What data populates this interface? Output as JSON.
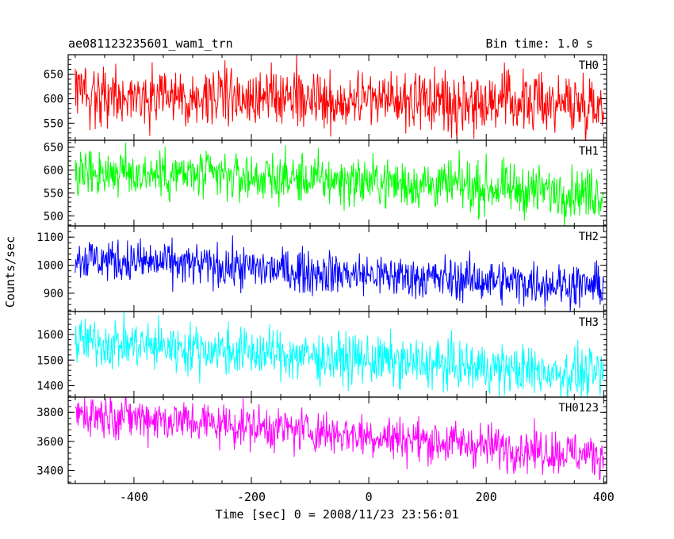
{
  "header": {
    "title": "ae081123235601_wam1_trn",
    "bin_time": "Bin time: 1.0 s"
  },
  "chart_data": {
    "type": "line",
    "xlabel": "Time [sec] 0 = 2008/11/23 23:56:01",
    "ylabel": "Counts/sec",
    "xlim": [
      -512,
      405
    ],
    "x_ticks": [
      -400,
      -200,
      0,
      200,
      400
    ],
    "x_step_sec": 1.0,
    "panels": [
      {
        "name": "TH0",
        "color": "#ff0000",
        "ylim": [
          515,
          690
        ],
        "y_ticks": [
          550,
          600,
          650
        ],
        "trend": {
          "x": [
            -500,
            -100,
            400
          ],
          "y": [
            613,
            600,
            590
          ]
        },
        "noise_amplitude": 30
      },
      {
        "name": "TH1",
        "color": "#00ff00",
        "ylim": [
          478,
          665
        ],
        "y_ticks": [
          500,
          550,
          600,
          650
        ],
        "trend": {
          "x": [
            -500,
            0,
            400
          ],
          "y": [
            598,
            575,
            548
          ]
        },
        "noise_amplitude": 27
      },
      {
        "name": "TH2",
        "color": "#0000ff",
        "ylim": [
          835,
          1140
        ],
        "y_ticks": [
          900,
          1000,
          1100
        ],
        "trend": {
          "x": [
            -500,
            0,
            400
          ],
          "y": [
            1025,
            965,
            925
          ]
        },
        "noise_amplitude": 38
      },
      {
        "name": "TH3",
        "color": "#00ffff",
        "ylim": [
          1355,
          1690
        ],
        "y_ticks": [
          1400,
          1500,
          1600
        ],
        "trend": {
          "x": [
            -500,
            0,
            400
          ],
          "y": [
            1575,
            1500,
            1440
          ]
        },
        "noise_amplitude": 48
      },
      {
        "name": "TH0123",
        "color": "#ff00ff",
        "ylim": [
          3310,
          3905
        ],
        "y_ticks": [
          3400,
          3600,
          3800
        ],
        "trend": {
          "x": [
            -500,
            0,
            400
          ],
          "y": [
            3800,
            3640,
            3500
          ]
        },
        "noise_amplitude": 75
      }
    ]
  }
}
